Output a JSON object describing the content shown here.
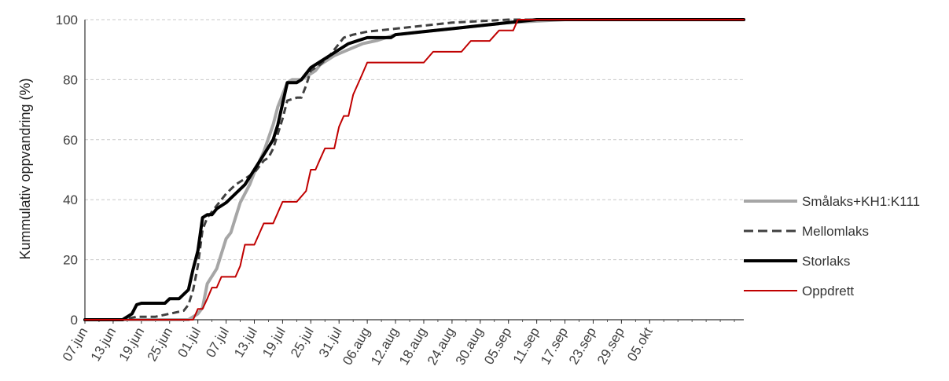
{
  "chart_data": {
    "type": "line",
    "title": "",
    "xlabel": "",
    "ylabel": "Kummulativ oppvandring (%)",
    "ylim": [
      0,
      100
    ],
    "xlim": [
      0,
      140
    ],
    "yticks": [
      0,
      20,
      40,
      60,
      80,
      100
    ],
    "grid": "horizontal dashed",
    "legend_position": "right",
    "x_ticks": [
      {
        "x": 0,
        "label": "07.jun"
      },
      {
        "x": 6,
        "label": "13.jun"
      },
      {
        "x": 12,
        "label": "19.jun"
      },
      {
        "x": 18,
        "label": "25.jun"
      },
      {
        "x": 24,
        "label": "01.jul"
      },
      {
        "x": 30,
        "label": "07.jul"
      },
      {
        "x": 36,
        "label": "13.jul"
      },
      {
        "x": 42,
        "label": "19.jul"
      },
      {
        "x": 48,
        "label": "25.jul"
      },
      {
        "x": 54,
        "label": "31.jul"
      },
      {
        "x": 60,
        "label": "06.aug"
      },
      {
        "x": 66,
        "label": "12.aug"
      },
      {
        "x": 72,
        "label": "18.aug"
      },
      {
        "x": 78,
        "label": "24.aug"
      },
      {
        "x": 84,
        "label": "30.aug"
      },
      {
        "x": 90,
        "label": "05.sep"
      },
      {
        "x": 96,
        "label": "11.sep"
      },
      {
        "x": 102,
        "label": "17.sep"
      },
      {
        "x": 108,
        "label": "23.sep"
      },
      {
        "x": 114,
        "label": "29.sep"
      },
      {
        "x": 120,
        "label": "05.okt"
      }
    ],
    "series": [
      {
        "name": "Smålaks+KH1:K111",
        "color": "#a6a6a6",
        "width": 4,
        "dash": "",
        "points": [
          [
            0,
            0
          ],
          [
            22,
            0
          ],
          [
            24,
            2
          ],
          [
            25,
            4
          ],
          [
            26,
            12
          ],
          [
            28,
            17
          ],
          [
            30,
            27
          ],
          [
            31,
            29
          ],
          [
            32,
            34
          ],
          [
            33,
            39
          ],
          [
            35,
            45
          ],
          [
            36,
            49
          ],
          [
            38,
            56
          ],
          [
            40,
            65
          ],
          [
            41,
            71
          ],
          [
            42,
            75
          ],
          [
            43,
            79
          ],
          [
            44,
            80
          ],
          [
            46,
            80
          ],
          [
            47,
            81
          ],
          [
            48,
            82
          ],
          [
            49,
            83
          ],
          [
            50,
            85
          ],
          [
            53,
            88
          ],
          [
            56,
            90
          ],
          [
            59,
            92
          ],
          [
            62,
            93
          ],
          [
            66,
            95
          ],
          [
            72,
            96
          ],
          [
            78,
            97
          ],
          [
            84,
            98
          ],
          [
            90,
            99
          ],
          [
            96,
            99.5
          ],
          [
            102,
            100
          ],
          [
            140,
            100
          ]
        ]
      },
      {
        "name": "Mellomlaks",
        "color": "#404040",
        "width": 3,
        "dash": "9,5",
        "points": [
          [
            0,
            0
          ],
          [
            8,
            0
          ],
          [
            11,
            1
          ],
          [
            15,
            1
          ],
          [
            18,
            2
          ],
          [
            21,
            3
          ],
          [
            22,
            5
          ],
          [
            23,
            10
          ],
          [
            24,
            18
          ],
          [
            25,
            30
          ],
          [
            26,
            34
          ],
          [
            28,
            38
          ],
          [
            30,
            42
          ],
          [
            32,
            45
          ],
          [
            34,
            47
          ],
          [
            36,
            49
          ],
          [
            38,
            53
          ],
          [
            39,
            54
          ],
          [
            40,
            57
          ],
          [
            42,
            67
          ],
          [
            43,
            73
          ],
          [
            45,
            74
          ],
          [
            46,
            74
          ],
          [
            47,
            78
          ],
          [
            48,
            83
          ],
          [
            50,
            85
          ],
          [
            52,
            88
          ],
          [
            54,
            92
          ],
          [
            55,
            94
          ],
          [
            57,
            95
          ],
          [
            60,
            96
          ],
          [
            66,
            97
          ],
          [
            72,
            98
          ],
          [
            78,
            99
          ],
          [
            84,
            99.5
          ],
          [
            90,
            100
          ],
          [
            140,
            100
          ]
        ]
      },
      {
        "name": "Storlaks",
        "color": "#000000",
        "width": 4,
        "dash": "",
        "points": [
          [
            0,
            0
          ],
          [
            8,
            0
          ],
          [
            10,
            2
          ],
          [
            11,
            5
          ],
          [
            12,
            5.5
          ],
          [
            17,
            5.5
          ],
          [
            18,
            7
          ],
          [
            20,
            7
          ],
          [
            22,
            10
          ],
          [
            23,
            17
          ],
          [
            24,
            23
          ],
          [
            25,
            34
          ],
          [
            26,
            35
          ],
          [
            27,
            35
          ],
          [
            28,
            37
          ],
          [
            30,
            39
          ],
          [
            32,
            42
          ],
          [
            34,
            45
          ],
          [
            36,
            50
          ],
          [
            38,
            55
          ],
          [
            40,
            60
          ],
          [
            41,
            65
          ],
          [
            42,
            72
          ],
          [
            43,
            79
          ],
          [
            45,
            79
          ],
          [
            46,
            80
          ],
          [
            47,
            82
          ],
          [
            48,
            84
          ],
          [
            50,
            86
          ],
          [
            52,
            88
          ],
          [
            54,
            90
          ],
          [
            56,
            92
          ],
          [
            58,
            93
          ],
          [
            60,
            94
          ],
          [
            65,
            94
          ],
          [
            66,
            95
          ],
          [
            72,
            96
          ],
          [
            78,
            97
          ],
          [
            84,
            98
          ],
          [
            90,
            99
          ],
          [
            96,
            100
          ],
          [
            140,
            100
          ]
        ]
      },
      {
        "name": "Oppdrett",
        "color": "#c00000",
        "width": 2,
        "dash": "",
        "points": [
          [
            0,
            0
          ],
          [
            23,
            0
          ],
          [
            24,
            3.6
          ],
          [
            25,
            3.6
          ],
          [
            26,
            7
          ],
          [
            27,
            10.7
          ],
          [
            28,
            10.7
          ],
          [
            29,
            14.3
          ],
          [
            32,
            14.3
          ],
          [
            33,
            17.9
          ],
          [
            34,
            25
          ],
          [
            36,
            25
          ],
          [
            38,
            32.1
          ],
          [
            40,
            32.1
          ],
          [
            42,
            39.3
          ],
          [
            45,
            39.3
          ],
          [
            47,
            42.9
          ],
          [
            48,
            50
          ],
          [
            49,
            50
          ],
          [
            50,
            53.6
          ],
          [
            51,
            57.1
          ],
          [
            53,
            57.1
          ],
          [
            54,
            64.3
          ],
          [
            55,
            67.9
          ],
          [
            56,
            67.9
          ],
          [
            57,
            75
          ],
          [
            59,
            82.1
          ],
          [
            60,
            85.7
          ],
          [
            72,
            85.7
          ],
          [
            74,
            89.3
          ],
          [
            80,
            89.3
          ],
          [
            82,
            92.9
          ],
          [
            86,
            92.9
          ],
          [
            88,
            96.4
          ],
          [
            91,
            96.4
          ],
          [
            92,
            100
          ],
          [
            140,
            100
          ]
        ]
      }
    ]
  }
}
